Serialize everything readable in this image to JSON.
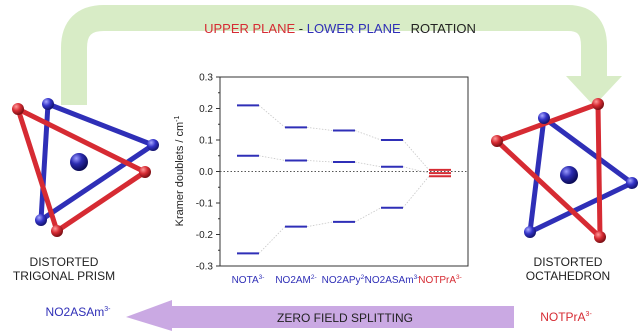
{
  "banner": {
    "part1": "UPPER PLANE",
    "sep": " - ",
    "part2": "LOWER PLANE",
    "part3": "ROTATION"
  },
  "bottom_arrow_label": "ZERO FIELD SPLITTING",
  "left_structure": {
    "caption_line1": "DISTORTED",
    "caption_line2": "TRIGONAL PRISM",
    "compound": "NO2ASAm",
    "compound_charge": "3-"
  },
  "right_structure": {
    "caption_line1": "DISTORTED",
    "caption_line2": "OCTAHEDRON",
    "compound": "NOTPrA",
    "compound_charge": "3-"
  },
  "colors": {
    "red": "#d62b33",
    "blue": "#2f2fb7",
    "dark_text": "#222222",
    "green_arrow": "#d8ecc6",
    "purple_arrow": "#caa9e3",
    "metal_ion": "#1d1d8f"
  },
  "chart_data": {
    "type": "scatter",
    "ylabel": "Kramer doublets / cm",
    "ylabel_superscript": "-1",
    "ylim": [
      -0.3,
      0.3
    ],
    "yticks": [
      "-0.3",
      "-0.2",
      "-0.1",
      "0.0",
      "0.1",
      "0.2",
      "0.3"
    ],
    "zero_line": "dotted",
    "categories": [
      {
        "name": "NOTA",
        "charge": "3-",
        "color": "#2f2fb7"
      },
      {
        "name": "NO2AM",
        "charge": "2-",
        "color": "#2f2fb7"
      },
      {
        "name": "NO2APy",
        "charge": "2-",
        "color": "#2f2fb7"
      },
      {
        "name": "NO2ASAm",
        "charge": "3-",
        "color": "#2f2fb7"
      },
      {
        "name": "NOTPrA",
        "charge": "3-",
        "color": "#d62b33"
      }
    ],
    "levels": [
      [
        0.21,
        0.05,
        -0.26
      ],
      [
        0.14,
        0.035,
        -0.175
      ],
      [
        0.13,
        0.03,
        -0.16
      ],
      [
        0.1,
        0.015,
        -0.115
      ],
      [
        0.005,
        -0.005,
        -0.015
      ]
    ]
  }
}
